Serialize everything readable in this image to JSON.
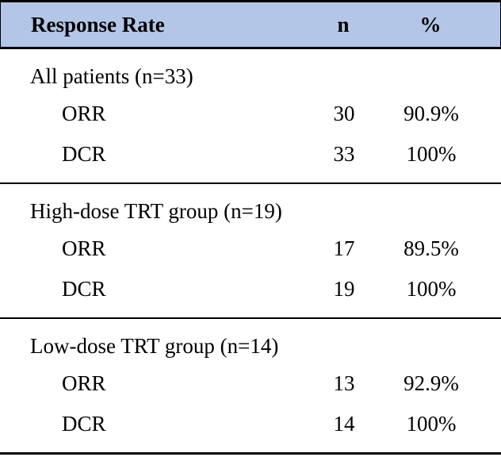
{
  "table": {
    "header": {
      "response_rate": "Response Rate",
      "n": "n",
      "pct": "%"
    },
    "colors": {
      "header_background": "#B4C6E7",
      "border": "#000000",
      "text": "#000000"
    },
    "sections": [
      {
        "label": "All patients (n=33)",
        "rows": [
          {
            "name": "ORR",
            "n": "30",
            "pct": "90.9%"
          },
          {
            "name": "DCR",
            "n": "33",
            "pct": "100%"
          }
        ]
      },
      {
        "label": "High-dose TRT group (n=19)",
        "rows": [
          {
            "name": "ORR",
            "n": "17",
            "pct": "89.5%"
          },
          {
            "name": "DCR",
            "n": "19",
            "pct": "100%"
          }
        ]
      },
      {
        "label": "Low-dose TRT group (n=14)",
        "rows": [
          {
            "name": "ORR",
            "n": "13",
            "pct": "92.9%"
          },
          {
            "name": "DCR",
            "n": "14",
            "pct": "100%"
          }
        ]
      }
    ]
  }
}
